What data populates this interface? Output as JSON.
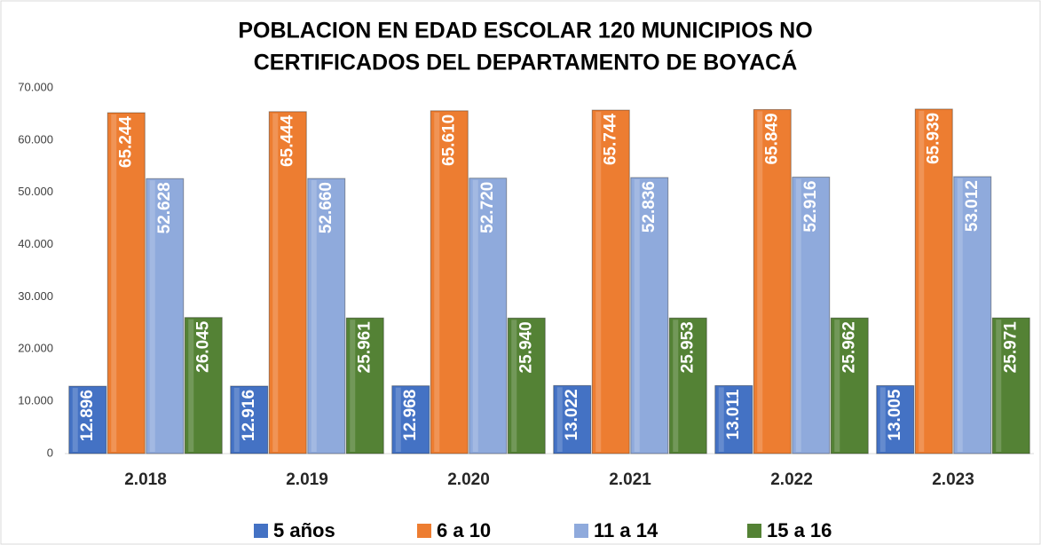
{
  "chart_data": {
    "type": "bar",
    "title": [
      "POBLACION EN EDAD ESCOLAR 120 MUNICIPIOS NO",
      "CERTIFICADOS DEL DEPARTAMENTO DE BOYACÁ"
    ],
    "categories": [
      "2.018",
      "2.019",
      "2.020",
      "2.021",
      "2.022",
      "2.023"
    ],
    "series": [
      {
        "name": "5 años",
        "color": "#4472c4",
        "values": [
          12896,
          12916,
          12968,
          13022,
          13011,
          13005
        ],
        "value_labels": [
          "12.896",
          "12.916",
          "12.968",
          "13.022",
          "13.011",
          "13.005"
        ]
      },
      {
        "name": "6 a 10",
        "color": "#ed7d31",
        "values": [
          65244,
          65444,
          65610,
          65744,
          65849,
          65939
        ],
        "value_labels": [
          "65.244",
          "65.444",
          "65.610",
          "65.744",
          "65.849",
          "65.939"
        ]
      },
      {
        "name": "11 a 14",
        "color": "#8faadc",
        "values": [
          52628,
          52660,
          52720,
          52836,
          52916,
          53012
        ],
        "value_labels": [
          "52.628",
          "52.660",
          "52.720",
          "52.836",
          "52.916",
          "53.012"
        ]
      },
      {
        "name": "15 a 16",
        "color": "#548235",
        "values": [
          26045,
          25961,
          25940,
          25953,
          25962,
          25971
        ],
        "value_labels": [
          "26.045",
          "25.961",
          "25.940",
          "25.953",
          "25.962",
          "25.971"
        ]
      }
    ],
    "ylim": [
      0,
      70000
    ],
    "yticks": [
      0,
      {
        "value": 10000,
        "label": "10.000"
      },
      {
        "value": 20000,
        "label": "20.000"
      },
      {
        "value": 30000,
        "label": "30.000"
      },
      {
        "value": 40000,
        "label": "40.000"
      },
      {
        "value": 50000,
        "label": "50.000"
      },
      {
        "value": 60000,
        "label": "60.000"
      },
      {
        "value": 70000,
        "label": "70.000"
      }
    ],
    "legend": "bottom"
  }
}
